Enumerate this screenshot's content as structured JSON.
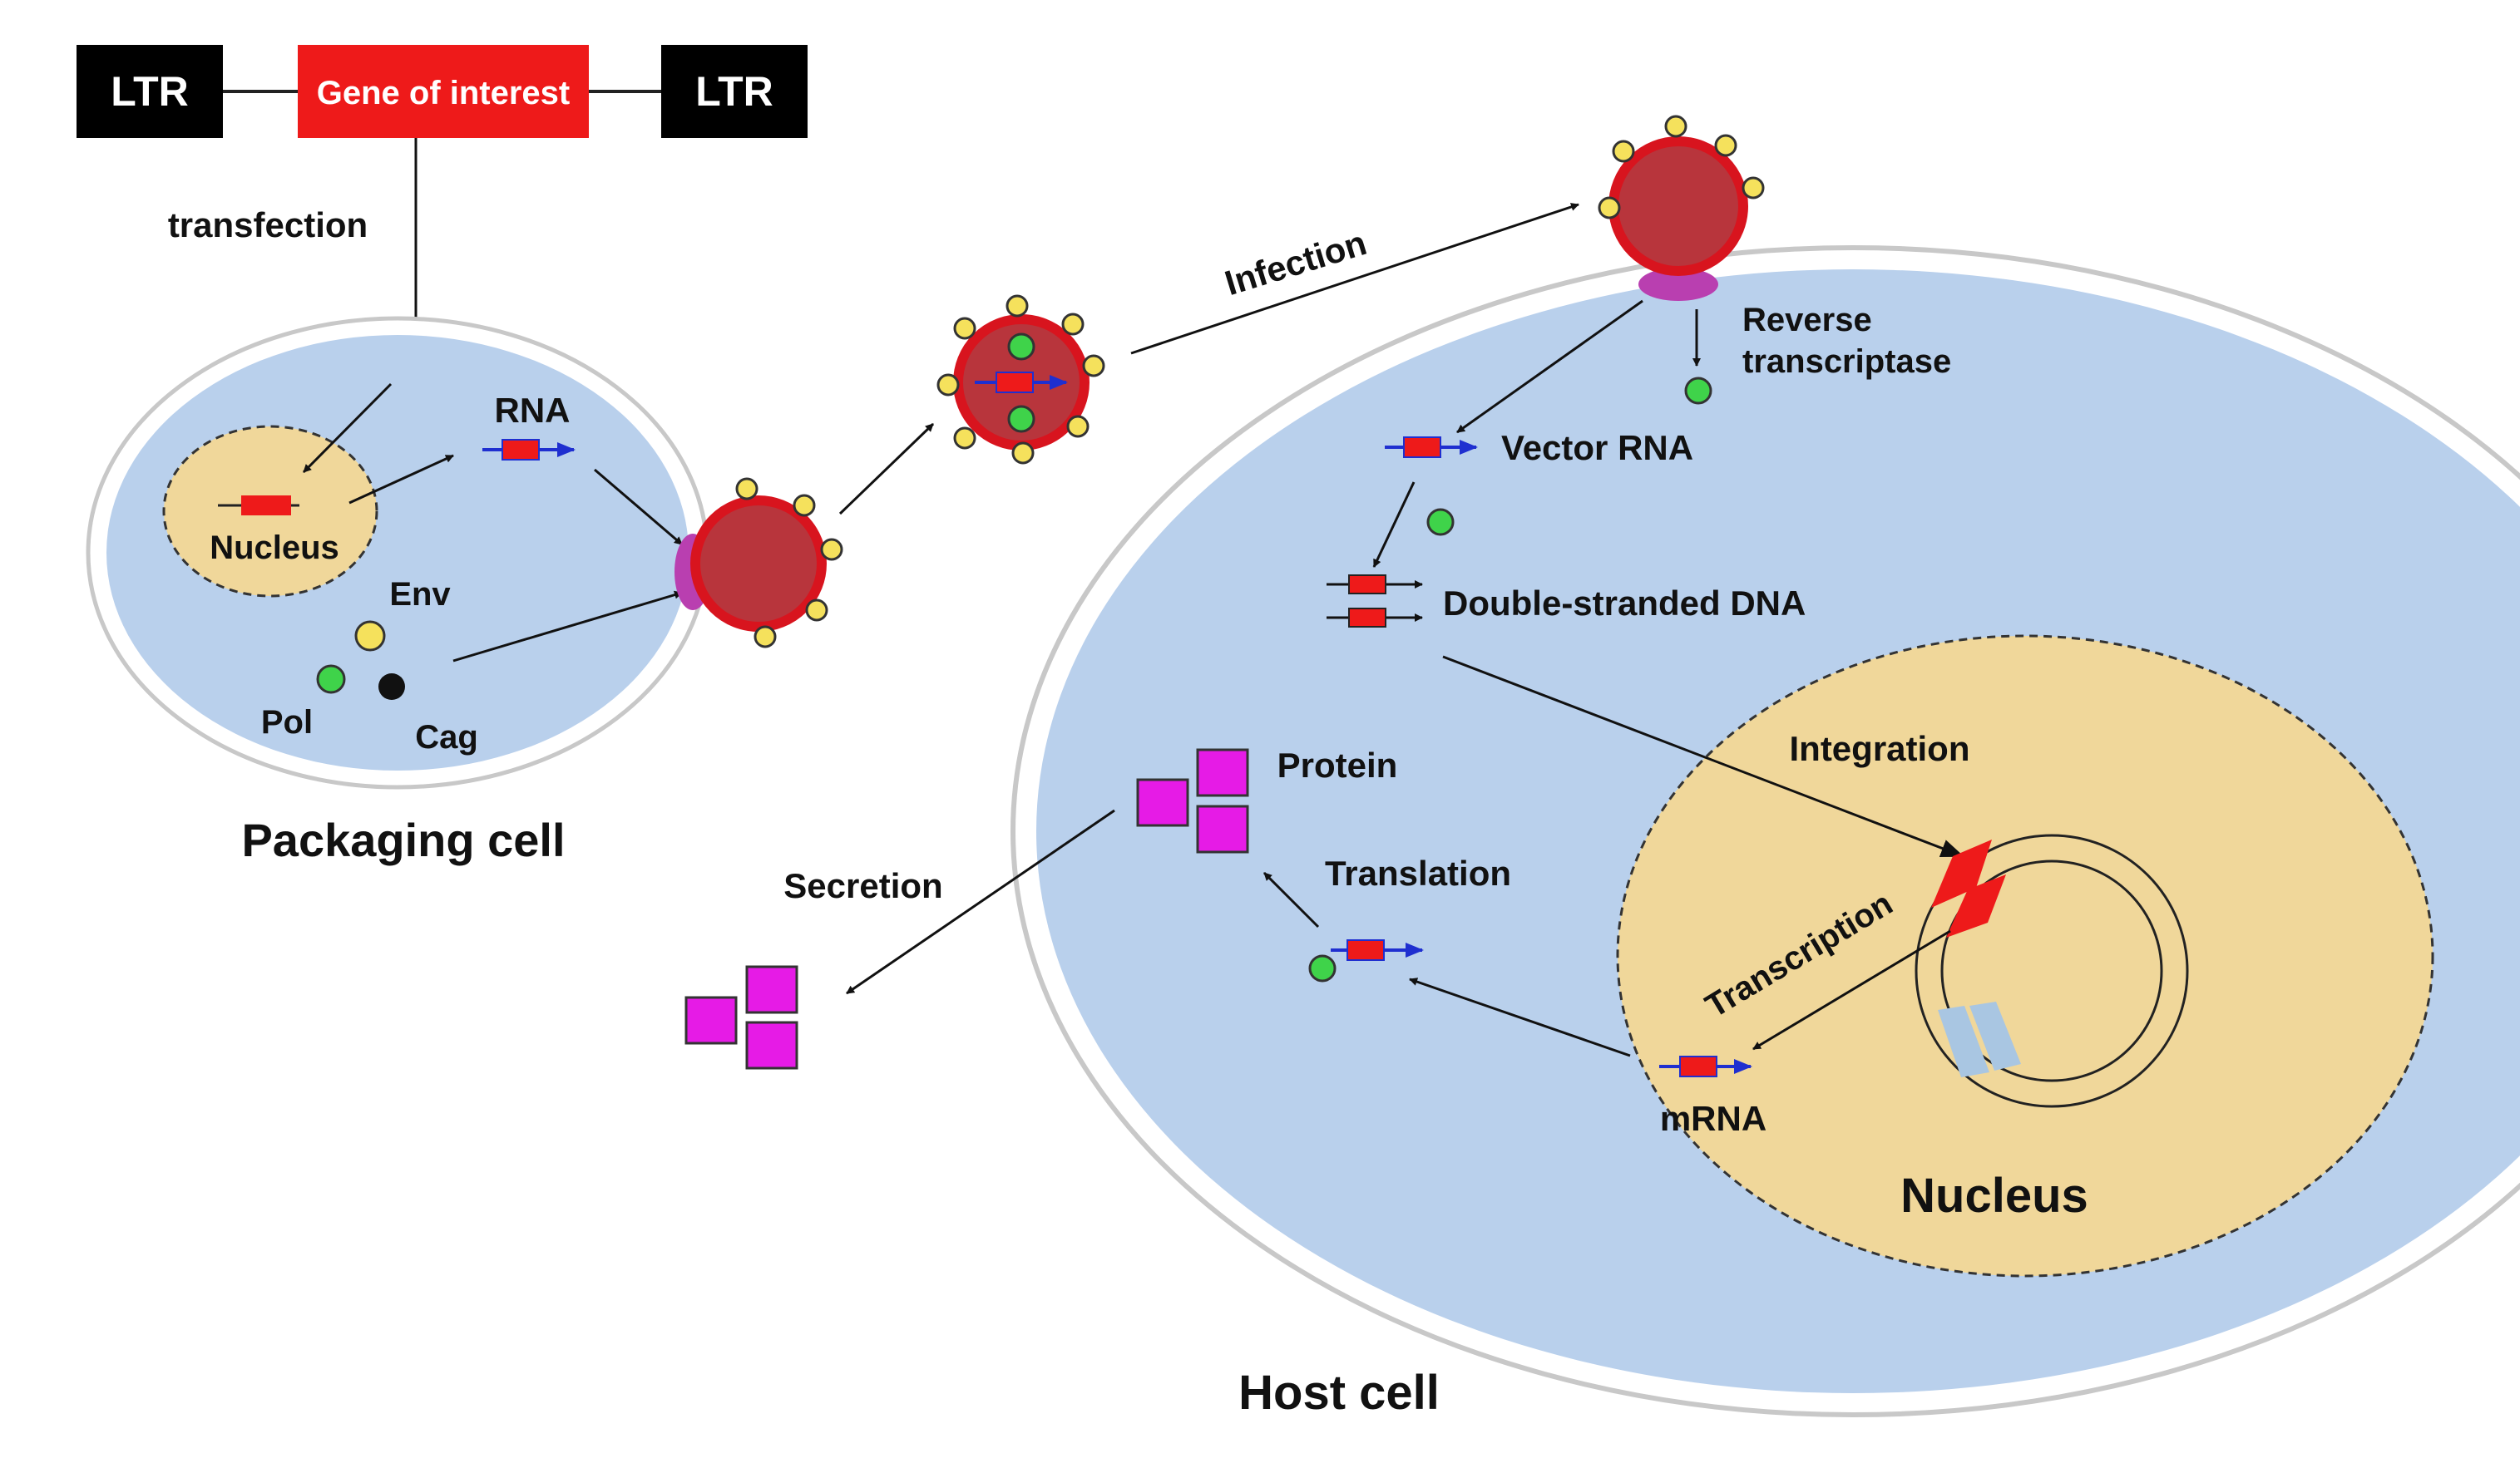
{
  "construct": {
    "ltr_left": "LTR",
    "gene": "Gene of interest",
    "ltr_right": "LTR"
  },
  "packaging": {
    "transfection": "transfection",
    "rna": "RNA",
    "nucleus": "Nucleus",
    "env": "Env",
    "pol": "Pol",
    "cag": "Cag",
    "title": "Packaging cell"
  },
  "host": {
    "infection": "Infection",
    "reverse_transcriptase_line1": "Reverse",
    "reverse_transcriptase_line2": "transcriptase",
    "vector_rna": "Vector RNA",
    "ds_dna": "Double-stranded DNA",
    "integration": "Integration",
    "transcription": "Transcription",
    "mrna": "mRNA",
    "nucleus": "Nucleus",
    "translation": "Translation",
    "protein": "Protein",
    "secretion": "Secretion",
    "title": "Host cell"
  },
  "colors": {
    "cell_fill": "#b9d0ec",
    "nucleus_fill": "#f0d79a",
    "virus_red": "#c9242b",
    "virus_core": "#b8353c",
    "spike_yellow": "#f5e15c",
    "green": "#3fd34a",
    "magenta": "#e61be6",
    "purple_receptor": "#b93fb0",
    "arrow_blue": "#1f2fd0",
    "gene_red": "#ee1a1a",
    "ltr_black": "#000000",
    "light_blue_segment": "#a9c6e2"
  }
}
